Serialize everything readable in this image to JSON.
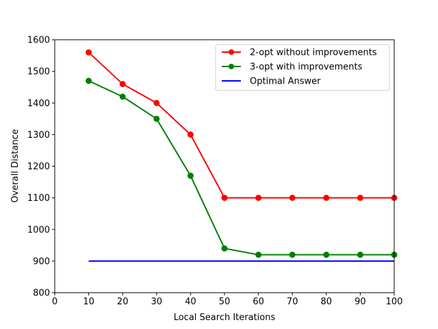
{
  "chart_data": {
    "type": "line",
    "xlabel": "Local Search Iterations",
    "ylabel": "Overall Distance",
    "xlim": [
      0,
      100
    ],
    "ylim": [
      800,
      1600
    ],
    "xticks": [
      "0",
      "10",
      "20",
      "30",
      "40",
      "50",
      "60",
      "70",
      "80",
      "90",
      "100"
    ],
    "yticks": [
      "800",
      "900",
      "1000",
      "1100",
      "1200",
      "1300",
      "1400",
      "1500",
      "1600"
    ],
    "grid": false,
    "legend_position": "top-right",
    "x": [
      10,
      20,
      30,
      40,
      50,
      60,
      70,
      80,
      90,
      100
    ],
    "series": [
      {
        "name": "2-opt without improvements",
        "color": "#ff0000",
        "markers": true,
        "values": [
          1560,
          1460,
          1400,
          1300,
          1100,
          1100,
          1100,
          1100,
          1100,
          1100
        ]
      },
      {
        "name": "3-opt with improvements",
        "color": "#008000",
        "markers": true,
        "values": [
          1470,
          1420,
          1350,
          1170,
          940,
          920,
          920,
          920,
          920,
          920
        ]
      },
      {
        "name": "Optimal Answer",
        "color": "#0000ff",
        "markers": false,
        "values": [
          900,
          900,
          900,
          900,
          900,
          900,
          900,
          900,
          900,
          900
        ]
      }
    ]
  }
}
